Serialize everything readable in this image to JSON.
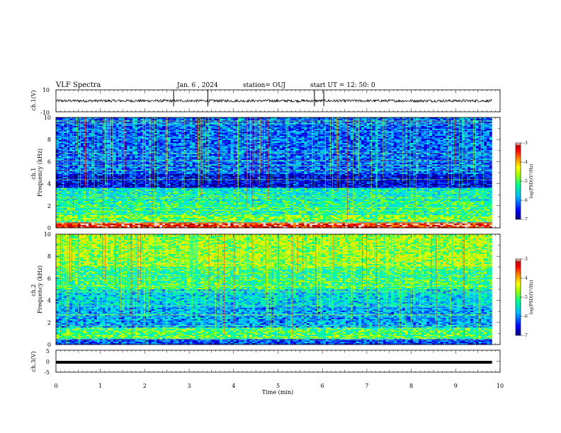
{
  "header": {
    "title": "VLF Spectra",
    "date": "Jan. 6 , 2024",
    "station": "station= OUJ",
    "start": "start UT =  12: 50: 0"
  },
  "chart_data": [
    {
      "type": "line",
      "panel": "ch1-waveform",
      "title": "",
      "ylabel": "ch.1(V)",
      "ylim": [
        -10,
        10
      ],
      "yticks": [
        "10",
        "-10"
      ],
      "xlim": [
        0,
        10
      ],
      "baseline": 0,
      "spikes_x": [
        2.65,
        3.42,
        5.82,
        6.03
      ]
    },
    {
      "type": "heatmap",
      "panel": "ch1-spectrogram",
      "ylabel": "ch.1\nFrequency (kHz)",
      "ylabel_lines": [
        "ch.1",
        "Frequency (kHz)"
      ],
      "ylim": [
        0,
        10
      ],
      "yticks": [
        "0",
        "2",
        "4",
        "6",
        "8",
        "10"
      ],
      "xlim": [
        0,
        10
      ],
      "colorbar": {
        "label": "log(PSD)(V²/Hz)",
        "range": [
          -7,
          -3
        ],
        "ticks": [
          "-3",
          "-4",
          "-5",
          "-6",
          "-7"
        ],
        "colors": [
          "#000090",
          "#0000ff",
          "#00c0ff",
          "#00ffa0",
          "#c0ff00",
          "#ffff00",
          "#ff8000",
          "#ff0000",
          "#c00000",
          "#ffffff"
        ]
      }
    },
    {
      "type": "heatmap",
      "panel": "ch2-spectrogram",
      "ylabel": "ch.2\nFrequency (kHz)",
      "ylabel_lines": [
        "ch.2",
        "Frequency (kHz)"
      ],
      "ylim": [
        0,
        10
      ],
      "yticks": [
        "0",
        "2",
        "4",
        "6",
        "8",
        "10"
      ],
      "xlim": [
        0,
        10
      ],
      "colorbar": {
        "label": "log(PSD)(V²/Hz)",
        "range": [
          -7,
          -3
        ],
        "ticks": [
          "-3",
          "-4",
          "-5",
          "-6",
          "-7"
        ]
      }
    },
    {
      "type": "line",
      "panel": "ch3-waveform",
      "ylabel": "ch.3(V)",
      "ylim": [
        -5,
        5
      ],
      "yticks": [
        "5",
        "0",
        "-5"
      ],
      "xlim": [
        0,
        10
      ],
      "baseline": -0.5
    }
  ],
  "xaxis": {
    "label": "Time (min)",
    "ticks": [
      "0",
      "1",
      "2",
      "3",
      "4",
      "5",
      "6",
      "7",
      "8",
      "9",
      "10"
    ]
  }
}
